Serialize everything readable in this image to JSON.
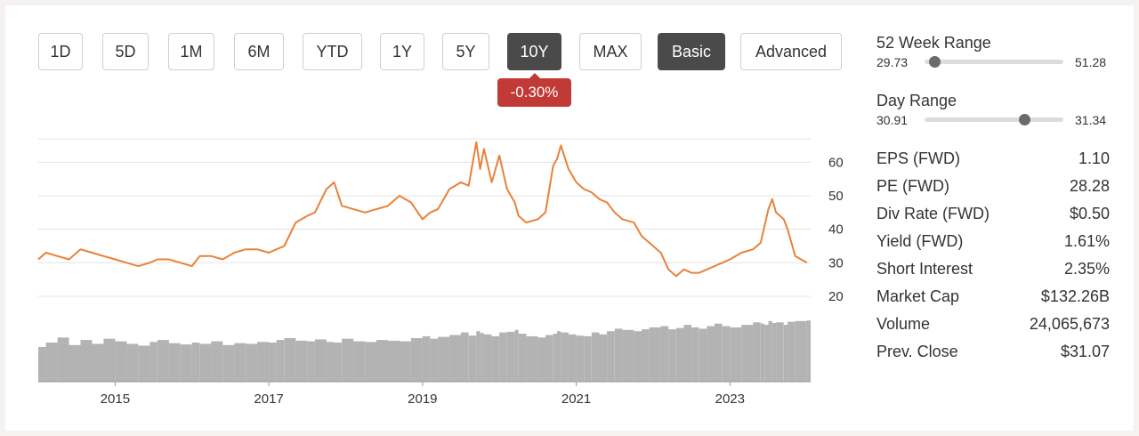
{
  "range_buttons": [
    {
      "label": "1D",
      "active": false
    },
    {
      "label": "5D",
      "active": false
    },
    {
      "label": "1M",
      "active": false
    },
    {
      "label": "6M",
      "active": false
    },
    {
      "label": "YTD",
      "active": false
    },
    {
      "label": "1Y",
      "active": false
    },
    {
      "label": "5Y",
      "active": false
    },
    {
      "label": "10Y",
      "active": true
    },
    {
      "label": "MAX",
      "active": false
    }
  ],
  "view_buttons": [
    {
      "label": "Basic",
      "active": true
    },
    {
      "label": "Advanced",
      "active": false
    }
  ],
  "change_badge": "-0.30%",
  "colors": {
    "line": "#e8823a",
    "volume": "#b3b3b3",
    "badge": "#c13a35",
    "active_button": "#4a4a4a",
    "grid": "#e3e3e3"
  },
  "week52": {
    "title": "52 Week Range",
    "low": "29.73",
    "high": "51.28",
    "position": 0.03
  },
  "day_range": {
    "title": "Day Range",
    "low": "30.91",
    "high": "31.34",
    "position": 0.72
  },
  "stats": [
    {
      "label": "EPS (FWD)",
      "value": "1.10"
    },
    {
      "label": "PE (FWD)",
      "value": "28.28"
    },
    {
      "label": "Div Rate (FWD)",
      "value": "$0.50"
    },
    {
      "label": "Yield (FWD)",
      "value": "1.61%"
    },
    {
      "label": "Short Interest",
      "value": "2.35%"
    },
    {
      "label": "Market Cap",
      "value": "$132.26B"
    },
    {
      "label": "Volume",
      "value": "24,065,673"
    },
    {
      "label": "Prev. Close",
      "value": "$31.07"
    }
  ],
  "chart_data": {
    "type": "line",
    "title": "",
    "xlabel": "",
    "ylabel": "",
    "x_ticks": [
      "2015",
      "2017",
      "2019",
      "2021",
      "2023"
    ],
    "y_ticks": [
      20,
      30,
      40,
      50,
      60
    ],
    "ylim": [
      16,
      67
    ],
    "xlim": [
      2014.0,
      2024.05
    ],
    "grid": true,
    "series": [
      {
        "x": [
          2014.0,
          2014.1,
          2014.25,
          2014.4,
          2014.55,
          2014.7,
          2014.85,
          2015.0,
          2015.15,
          2015.3,
          2015.45,
          2015.55,
          2015.7,
          2015.85,
          2016.0,
          2016.1,
          2016.25,
          2016.4,
          2016.55,
          2016.7,
          2016.85,
          2017.0,
          2017.1,
          2017.2,
          2017.35,
          2017.5,
          2017.6,
          2017.75,
          2017.85,
          2017.95,
          2018.1,
          2018.25,
          2018.4,
          2018.55,
          2018.7,
          2018.85,
          2019.0,
          2019.1,
          2019.2,
          2019.35,
          2019.5,
          2019.6,
          2019.7,
          2019.75,
          2019.8,
          2019.9,
          2020.0,
          2020.1,
          2020.2,
          2020.25,
          2020.35,
          2020.5,
          2020.6,
          2020.7,
          2020.75,
          2020.8,
          2020.9,
          2021.0,
          2021.1,
          2021.2,
          2021.3,
          2021.4,
          2021.5,
          2021.6,
          2021.75,
          2021.85,
          2021.95,
          2022.1,
          2022.2,
          2022.3,
          2022.4,
          2022.5,
          2022.6,
          2022.7,
          2022.8,
          2022.9,
          2023.0,
          2023.15,
          2023.3,
          2023.4,
          2023.45,
          2023.5,
          2023.55,
          2023.6,
          2023.7,
          2023.75,
          2023.85,
          2024.0
        ],
        "y": [
          31,
          33,
          32,
          31,
          34,
          33,
          32,
          31,
          30,
          29,
          30,
          31,
          31,
          30,
          29,
          32,
          32,
          31,
          33,
          34,
          34,
          33,
          34,
          35,
          42,
          44,
          45,
          52,
          54,
          47,
          46,
          45,
          46,
          47,
          50,
          48,
          43,
          45,
          46,
          52,
          54,
          53,
          66,
          58,
          64,
          54,
          62,
          52,
          48,
          44,
          42,
          43,
          45,
          59,
          61,
          65,
          58,
          54,
          52,
          51,
          49,
          48,
          45,
          43,
          42,
          38,
          36,
          33,
          28,
          26,
          28,
          27,
          27,
          28,
          29,
          30,
          31,
          33,
          34,
          36,
          41,
          46,
          49,
          45,
          43,
          40,
          32,
          30
        ],
        "volume": [
          0.55,
          0.62,
          0.7,
          0.58,
          0.66,
          0.6,
          0.68,
          0.64,
          0.6,
          0.57,
          0.63,
          0.66,
          0.61,
          0.59,
          0.62,
          0.6,
          0.64,
          0.58,
          0.61,
          0.6,
          0.63,
          0.62,
          0.66,
          0.69,
          0.65,
          0.64,
          0.67,
          0.63,
          0.62,
          0.68,
          0.64,
          0.63,
          0.66,
          0.65,
          0.64,
          0.69,
          0.72,
          0.68,
          0.71,
          0.74,
          0.78,
          0.73,
          0.8,
          0.77,
          0.75,
          0.72,
          0.78,
          0.79,
          0.82,
          0.76,
          0.72,
          0.7,
          0.74,
          0.76,
          0.8,
          0.78,
          0.75,
          0.73,
          0.72,
          0.78,
          0.75,
          0.8,
          0.84,
          0.82,
          0.8,
          0.83,
          0.86,
          0.88,
          0.83,
          0.85,
          0.9,
          0.86,
          0.84,
          0.88,
          0.92,
          0.88,
          0.86,
          0.9,
          0.94,
          0.92,
          0.9,
          0.96,
          0.93,
          0.94,
          0.9,
          0.95,
          0.96,
          0.97
        ]
      }
    ]
  }
}
